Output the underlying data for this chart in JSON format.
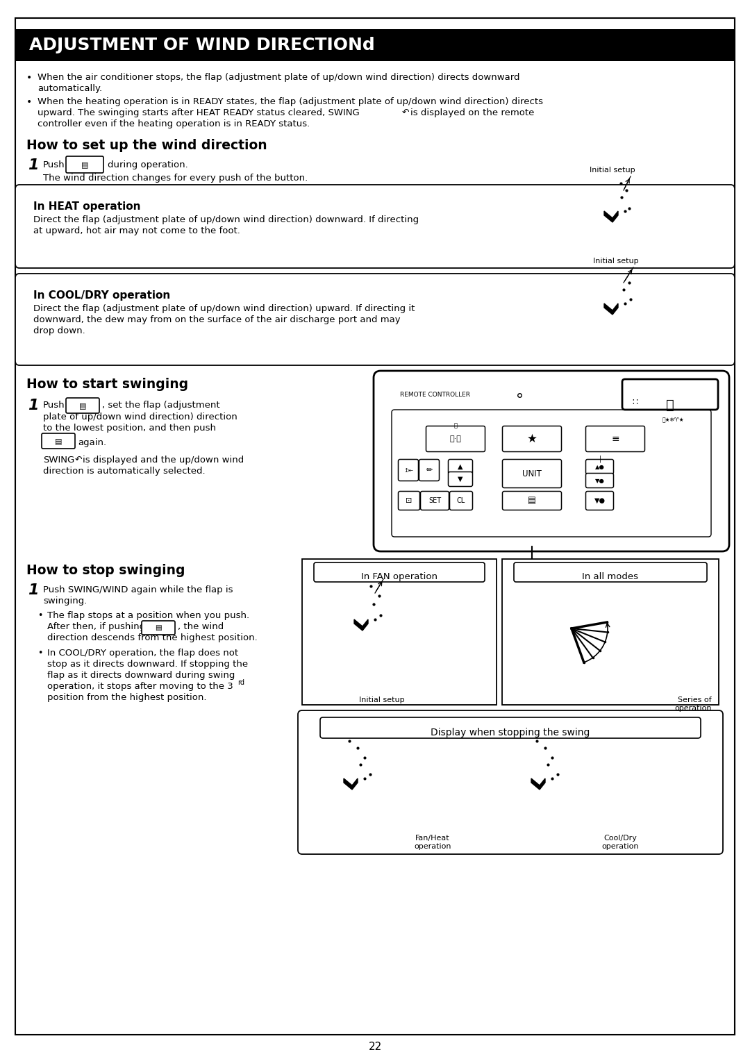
{
  "title": "ADJUSTMENT OF WIND DIRECTIONd",
  "page_number": "22",
  "bullet1_line1": "When the air conditioner stops, the flap (adjustment plate of up/down wind direction) directs downward",
  "bullet1_line2": "automatically.",
  "bullet2_line1": "When the heating operation is in READY states, the flap (adjustment plate of up/down wind direction) directs",
  "bullet2_line2": "upward. The swinging starts after HEAT READY status cleared, SWING     is displayed on the remote",
  "bullet2_line3": "controller even if the heating operation is in READY status.",
  "sec1_title": "How to set up the wind direction",
  "sec1_step": "Push         during operation.",
  "sec1_sub": "The wind direction changes for every push of the button.",
  "heat_title": "In HEAT operation",
  "heat_text1": "Direct the flap (adjustment plate of up/down wind direction) downward. If directing",
  "heat_text2": "at upward, hot air may not come to the foot.",
  "heat_label": "Initial setup",
  "cool_title": "In COOL/DRY operation",
  "cool_text1": "Direct the flap (adjustment plate of up/down wind direction) upward. If directing it",
  "cool_text2": "downward, the dew may from on the surface of the air discharge port and may",
  "cool_text3": "drop down.",
  "cool_label": "Initial setup",
  "sec2_title": "How to start swinging",
  "sec2_step1a": "Push       , set the flap (adjustment",
  "sec2_step1b": "plate of up/down wind direction) direction",
  "sec2_step1c": "to the lowest position, and then push",
  "sec2_step1d": "       again.",
  "sec2_swing1": "SWING     is displayed and the up/down wind",
  "sec2_swing2": "direction is automatically selected.",
  "sec3_title": "How to stop swinging",
  "sec3_step1a": "Push SWING/WIND again while the flap is",
  "sec3_step1b": "swinging.",
  "sec3_b1a": "The flap stops at a position when you push.",
  "sec3_b1b": "After then, if pushing          , the wind",
  "sec3_b1c": "direction descends from the highest position.",
  "sec3_b2a": "In COOL/DRY operation, the flap does not",
  "sec3_b2b": "stop as it directs downward. If stopping the",
  "sec3_b2c": "flap as it directs downward during swing",
  "sec3_b2d": "operation, it stops after moving to the 3",
  "sec3_b2d_sup": "rd",
  "sec3_b2e": "position from the highest position.",
  "fan_label": "In FAN operation",
  "all_modes_label": "In all modes",
  "series_label": "Series of\noperation",
  "initial_label": "Initial setup",
  "display_label": "Display when stopping the swing",
  "fan_heat_label": "Fan/Heat\noperation",
  "cool_dry_label": "Cool/Dry\noperation"
}
